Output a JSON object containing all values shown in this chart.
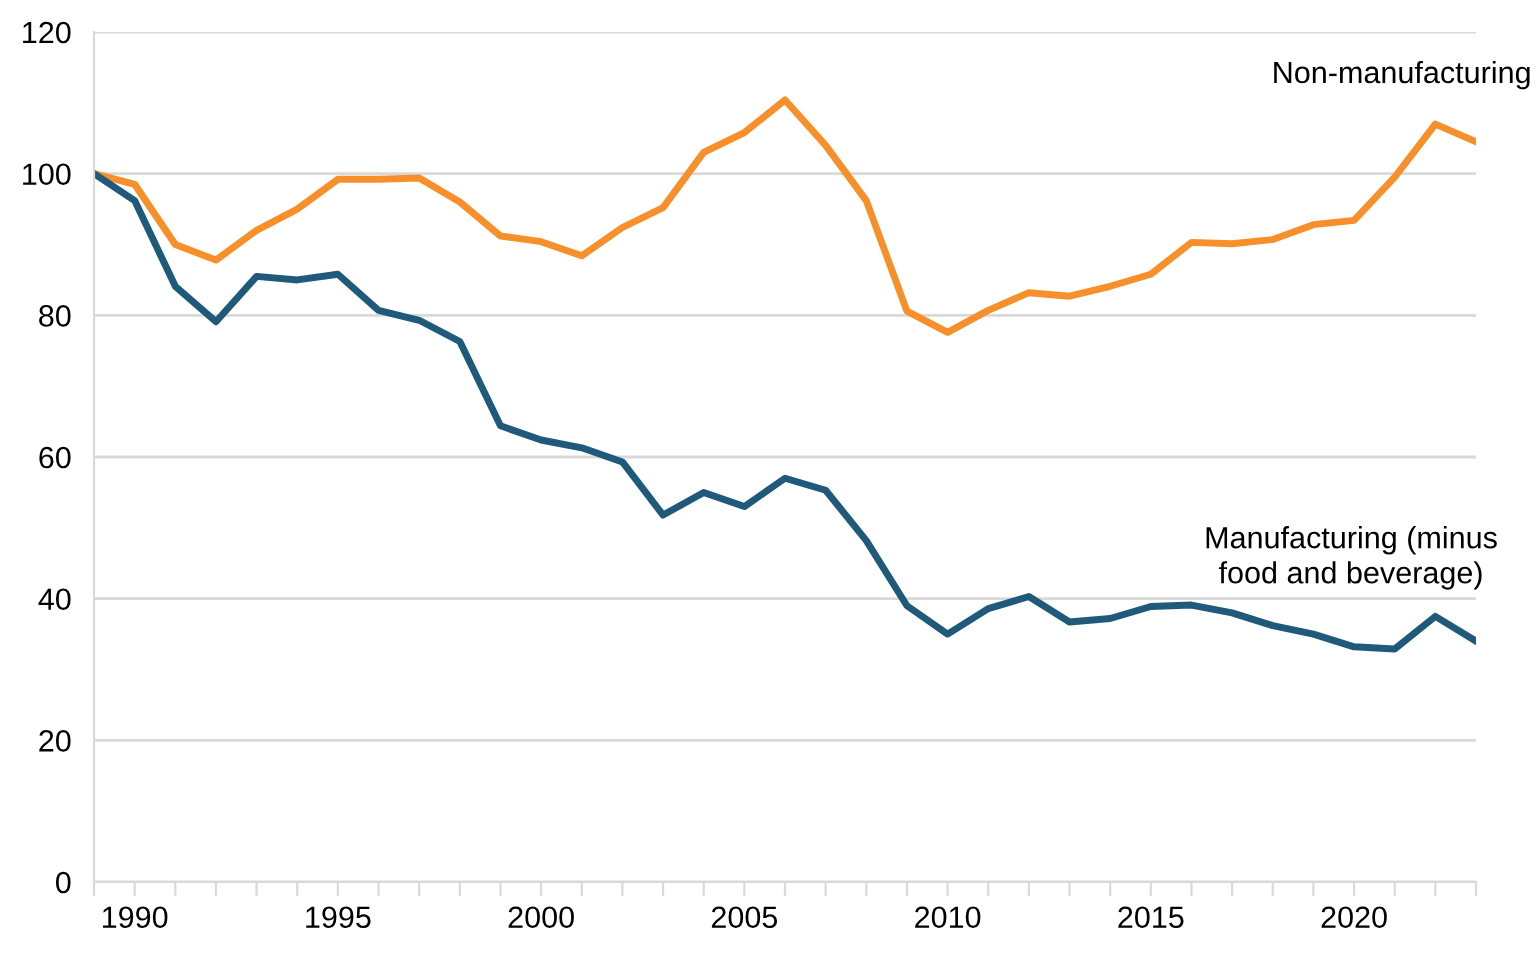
{
  "chart_data": {
    "type": "line",
    "x": [
      1989,
      1990,
      1991,
      1992,
      1993,
      1994,
      1995,
      1996,
      1997,
      1998,
      1999,
      2000,
      2001,
      2002,
      2003,
      2004,
      2005,
      2006,
      2007,
      2008,
      2009,
      2010,
      2011,
      2012,
      2013,
      2014,
      2015,
      2016,
      2017,
      2018,
      2019,
      2020,
      2021,
      2022,
      2023
    ],
    "series": [
      {
        "name": "Non-manufacturing",
        "color": "#f7902b",
        "values": [
          100,
          98.5,
          90,
          87.8,
          92,
          95,
          99.2,
          99.2,
          99.4,
          96,
          91.2,
          90.4,
          88.4,
          92.4,
          95.2,
          103,
          105.8,
          110.4,
          104,
          96.2,
          80.6,
          77.6,
          80.7,
          83.2,
          82.7,
          84.1,
          85.8,
          90.3,
          90.1,
          90.7,
          92.8,
          93.4,
          99.5,
          107,
          104.5
        ]
      },
      {
        "name": "Manufacturing (minus food and beverage)",
        "color": "#1f5a7a",
        "values": [
          100,
          96.2,
          84.1,
          79.1,
          85.5,
          85,
          85.8,
          80.7,
          79.3,
          76.3,
          64.4,
          62.4,
          61.3,
          59.3,
          51.8,
          55,
          53,
          57,
          55.3,
          48.2,
          39,
          35,
          38.6,
          40.3,
          36.7,
          37.2,
          38.9,
          39.1,
          38,
          36.2,
          35,
          33.2,
          32.9,
          37.5,
          34
        ]
      }
    ],
    "xlim": [
      1989,
      2023
    ],
    "xticks": [
      {
        "value": 1989,
        "label": null
      },
      1990,
      {
        "value": 1991,
        "label": null
      },
      {
        "value": 1992,
        "label": null
      },
      {
        "value": 1993,
        "label": null
      },
      {
        "value": 1994,
        "label": null
      },
      1995,
      {
        "value": 1996,
        "label": null
      },
      {
        "value": 1997,
        "label": null
      },
      {
        "value": 1998,
        "label": null
      },
      {
        "value": 1999,
        "label": null
      },
      2000,
      {
        "value": 2001,
        "label": null
      },
      {
        "value": 2002,
        "label": null
      },
      {
        "value": 2003,
        "label": null
      },
      {
        "value": 2004,
        "label": null
      },
      2005,
      {
        "value": 2006,
        "label": null
      },
      {
        "value": 2007,
        "label": null
      },
      {
        "value": 2008,
        "label": null
      },
      {
        "value": 2009,
        "label": null
      },
      2010,
      {
        "value": 2011,
        "label": null
      },
      {
        "value": 2012,
        "label": null
      },
      {
        "value": 2013,
        "label": null
      },
      {
        "value": 2014,
        "label": null
      },
      2015,
      {
        "value": 2016,
        "label": null
      },
      {
        "value": 2017,
        "label": null
      },
      {
        "value": 2018,
        "label": null
      },
      {
        "value": 2019,
        "label": null
      },
      2020,
      {
        "value": 2021,
        "label": null
      },
      {
        "value": 2022,
        "label": null
      },
      {
        "value": 2023,
        "label": null
      }
    ],
    "ylim": [
      0,
      120
    ],
    "yticks": [
      0,
      20,
      40,
      60,
      80,
      100,
      120
    ],
    "grid": "y",
    "legend": false,
    "marker": "none",
    "line_style": "solid"
  }
}
